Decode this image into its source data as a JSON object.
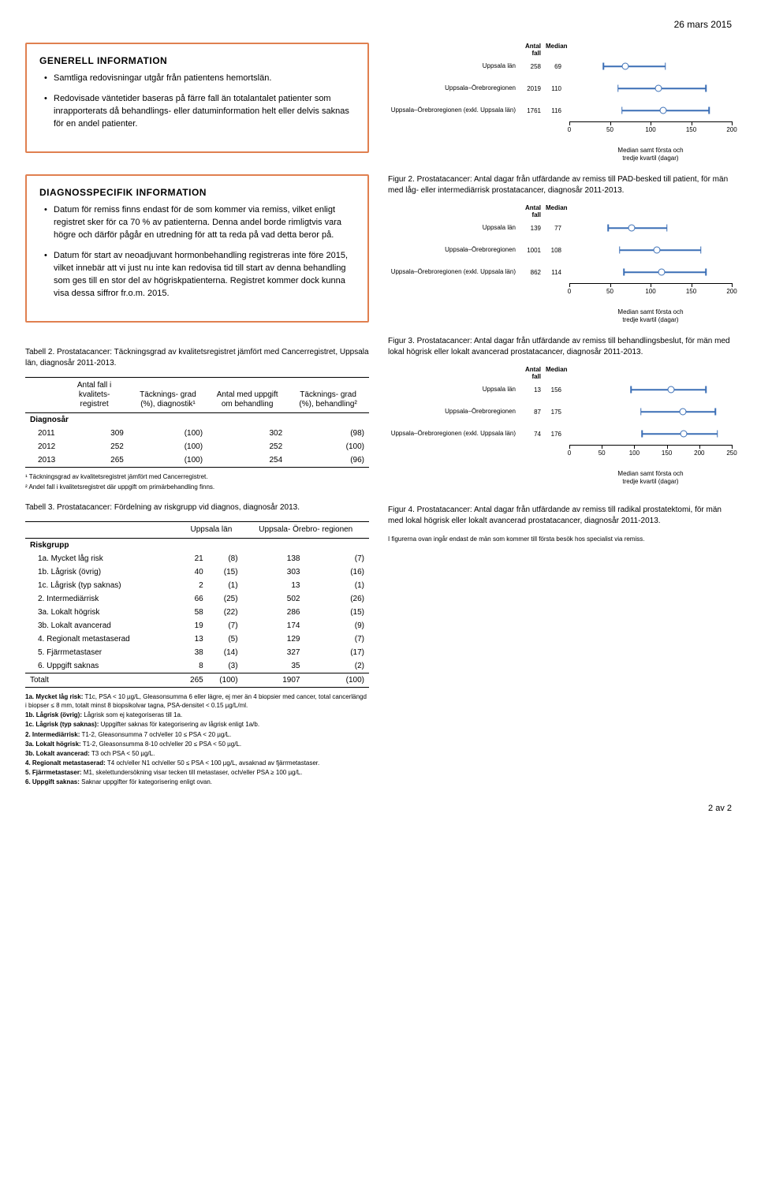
{
  "date": "26 mars 2015",
  "info_general": {
    "title": "GENERELL INFORMATION",
    "items": [
      "Samtliga redovisningar utgår från patientens hemortslän.",
      "Redovisade väntetider baseras på färre fall än totalantalet patienter som inrapporterats då behandlings- eller datuminformation helt eller delvis saknas för en andel patienter."
    ]
  },
  "info_diag": {
    "title": "DIAGNOSSPECIFIK INFORMATION",
    "items": [
      "Datum för remiss finns endast för de som kommer via remiss, vilket enligt registret sker för ca 70 % av patienterna. Denna andel borde rimligtvis vara högre och därför pågår en utredning för att ta reda på vad detta beror på.",
      "Datum för start av neoadjuvant hormonbehandling registreras inte före 2015, vilket innebär att vi just nu inte kan redovisa tid till start av denna behandling som ges till en stor del av högriskpatienterna. Registret kommer dock kunna visa dessa siffror fr.o.m. 2015."
    ]
  },
  "chart_headers": {
    "n": "Antal fall",
    "m": "Median"
  },
  "axis_caption": "Median samt första och\ntredje kvartil (dagar)",
  "fig_top": {
    "max": 200,
    "ticks": [
      0,
      50,
      100,
      150,
      200
    ],
    "rows": [
      {
        "label": "Uppsala län",
        "n": 258,
        "m": 69,
        "q1": 42,
        "q3": 118
      },
      {
        "label": "Uppsala–Örebroregionen",
        "n": 2019,
        "m": 110,
        "q1": 60,
        "q3": 168
      },
      {
        "label": "Uppsala–Örebroregionen (exkl. Uppsala län)",
        "n": 1761,
        "m": 116,
        "q1": 65,
        "q3": 172
      }
    ]
  },
  "fig2": {
    "caption": "Figur 2. Prostatacancer: Antal dagar från utfärdande av remiss till PAD-besked till patient, för män med låg- eller intermediärrisk prostatacancer, diagnosår 2011-2013.",
    "max": 200,
    "ticks": [
      0,
      50,
      100,
      150,
      200
    ],
    "rows": [
      {
        "label": "Uppsala län",
        "n": 139,
        "m": 77,
        "q1": 48,
        "q3": 120
      },
      {
        "label": "Uppsala–Örebroregionen",
        "n": 1001,
        "m": 108,
        "q1": 62,
        "q3": 162
      },
      {
        "label": "Uppsala–Örebroregionen (exkl. Uppsala län)",
        "n": 862,
        "m": 114,
        "q1": 67,
        "q3": 168
      }
    ]
  },
  "fig3": {
    "caption": "Figur 3. Prostatacancer: Antal dagar från utfärdande av remiss till behandlingsbeslut, för män med lokal högrisk eller lokalt avancerad prostatacancer, diagnosår 2011-2013.",
    "max": 250,
    "ticks": [
      0,
      50,
      100,
      150,
      200,
      250
    ],
    "rows": [
      {
        "label": "Uppsala län",
        "n": 13,
        "m": 156,
        "q1": 95,
        "q3": 210
      },
      {
        "label": "Uppsala–Örebroregionen",
        "n": 87,
        "m": 175,
        "q1": 110,
        "q3": 225
      },
      {
        "label": "Uppsala–Örebroregionen (exkl. Uppsala län)",
        "n": 74,
        "m": 176,
        "q1": 112,
        "q3": 228
      }
    ]
  },
  "fig4": {
    "caption": "Figur 4. Prostatacancer: Antal dagar från utfärdande av remiss till radikal prostatektomi, för män med lokal högrisk eller lokalt avancerad prostatacancer, diagnosår 2011-2013.",
    "note": "I figurerna ovan ingår endast de män som kommer till första besök hos specialist via remiss."
  },
  "table2": {
    "caption": "Tabell 2. Prostatacancer: Täckningsgrad av kvalitetsregistret jämfört med Cancerregistret, Uppsala län, diagnosår 2011-2013.",
    "headers": [
      "Antal fall i\nkvalitets-\nregistret",
      "Täcknings-\ngrad (%),\ndiagnostik¹",
      "Antal med\nuppgift om\nbehandling",
      "Täcknings-\ngrad (%),\nbehandling²"
    ],
    "group": "Diagnosår",
    "rows": [
      [
        "2011",
        "309",
        "(100)",
        "302",
        "(98)"
      ],
      [
        "2012",
        "252",
        "(100)",
        "252",
        "(100)"
      ],
      [
        "2013",
        "265",
        "(100)",
        "254",
        "(96)"
      ]
    ],
    "footnotes": [
      "¹ Täckningsgrad av kvalitetsregistret jämfört med Cancerregistret.",
      "² Andel fall i kvalitetsregistret där uppgift om primärbehandling finns."
    ]
  },
  "table3": {
    "caption": "Tabell 3. Prostatacancer: Fördelning av riskgrupp vid diagnos, diagnosår 2013.",
    "headers": [
      "",
      "Uppsala län",
      "Uppsala-\nÖrebro-\nregionen"
    ],
    "group": "Riskgrupp",
    "rows": [
      [
        "1a. Mycket låg risk",
        "21",
        "(8)",
        "138",
        "(7)"
      ],
      [
        "1b. Lågrisk (övrig)",
        "40",
        "(15)",
        "303",
        "(16)"
      ],
      [
        "1c. Lågrisk (typ saknas)",
        "2",
        "(1)",
        "13",
        "(1)"
      ],
      [
        "2. Intermediärrisk",
        "66",
        "(25)",
        "502",
        "(26)"
      ],
      [
        "3a. Lokalt högrisk",
        "58",
        "(22)",
        "286",
        "(15)"
      ],
      [
        "3b. Lokalt avancerad",
        "19",
        "(7)",
        "174",
        "(9)"
      ],
      [
        "4. Regionalt metastaserad",
        "13",
        "(5)",
        "129",
        "(7)"
      ],
      [
        "5. Fjärrmetastaser",
        "38",
        "(14)",
        "327",
        "(17)"
      ],
      [
        "6. Uppgift saknas",
        "8",
        "(3)",
        "35",
        "(2)"
      ],
      [
        "Totalt",
        "265",
        "(100)",
        "1907",
        "(100)"
      ]
    ],
    "footnotes": [
      "1a. Mycket låg risk: T1c, PSA < 10 µg/L, Gleasonsumma 6 eller lägre, ej mer än 4 biopsier med cancer, total cancerlängd i biopser ≤ 8 mm, totalt minst 8 biopsikolvar tagna, PSA-densitet < 0.15 µg/L/ml.",
      "1b. Lågrisk (övrig): Lågrisk som ej kategoriseras till 1a.",
      "1c. Lågrisk (typ saknas): Uppgifter saknas för kategorisering av lågrisk enligt 1a/b.",
      "2. Intermediärrisk: T1-2, Gleasonsumma 7 och/eller 10 ≤ PSA < 20 µg/L.",
      "3a. Lokalt högrisk: T1-2, Gleasonsumma 8-10 och/eller 20 ≤ PSA < 50 µg/L.",
      "3b. Lokalt avancerad: T3 och PSA < 50 µg/L.",
      "4. Regionalt metastaserad: T4 och/eller N1 och/eller 50 ≤ PSA < 100 µg/L, avsaknad av fjärrmetastaser.",
      "5. Fjärrmetastaser: M1, skelettundersökning visar tecken till metastaser, och/eller PSA ≥ 100 µg/L.",
      "6. Uppgift saknas: Saknar uppgifter för kategorisering enligt ovan."
    ]
  },
  "page": "2 av 2",
  "chart_color": "#3b6fb6"
}
